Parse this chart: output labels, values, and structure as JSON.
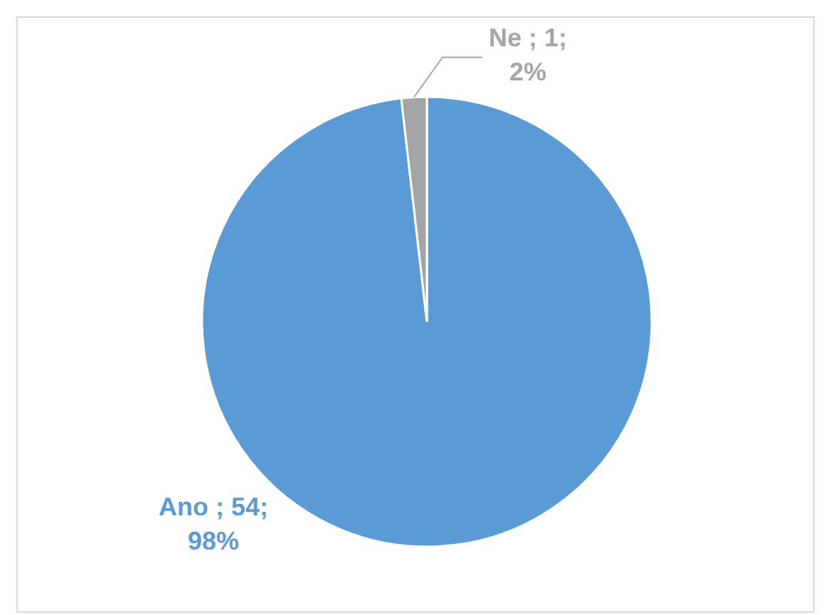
{
  "chart_data": {
    "type": "pie",
    "categories": [
      "Ano",
      "Ne"
    ],
    "values": [
      54,
      1
    ],
    "colors": [
      "#5b9bd5",
      "#a5a5a5"
    ],
    "value_labels": [
      "54;\n98%",
      "1;\n2%"
    ]
  }
}
